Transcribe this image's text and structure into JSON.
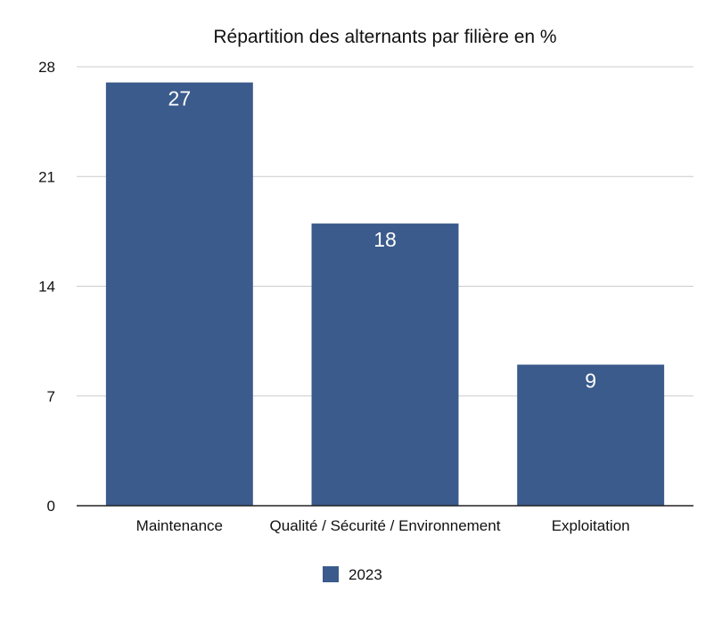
{
  "chart_data": {
    "type": "bar",
    "title": "Répartition des alternants par filière en %",
    "xlabel": "",
    "ylabel": "",
    "categories": [
      "Maintenance",
      "Qualité / Sécurité / Environnement",
      "Exploitation"
    ],
    "series": [
      {
        "name": "2023",
        "values": [
          27,
          18,
          9
        ],
        "color": "#3b5b8c"
      }
    ],
    "data_labels": [
      "27",
      "18",
      "9"
    ],
    "ylim": [
      0,
      28
    ],
    "yticks": [
      0,
      7,
      14,
      21,
      28
    ],
    "ytick_labels": [
      "0",
      "7",
      "14",
      "21",
      "28"
    ],
    "grid": true,
    "legend": "bottom"
  }
}
